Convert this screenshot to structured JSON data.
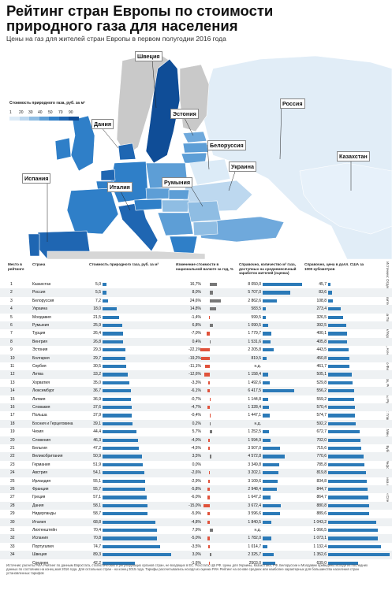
{
  "title": "Рейтинг стран Европы по стоимости природного газа для населения",
  "subtitle": "Цены на газ для жителей стран Европы в первом полугодии 2016 года",
  "legend": {
    "title": "Стоимость природного газа, руб. за м³",
    "ticks": [
      "1",
      "20",
      "30",
      "40",
      "50",
      "70",
      "90"
    ],
    "colors": [
      "#dcebf7",
      "#bdd8ef",
      "#8fbde3",
      "#5d9ed6",
      "#2f7fc8",
      "#1f66b2",
      "#0f4d97"
    ]
  },
  "map_labels": [
    "Швеция",
    "Дания",
    "Эстония",
    "Белоруссия",
    "Россия",
    "Украина",
    "Казахстан",
    "Румыния",
    "Италия",
    "Испания"
  ],
  "credit": "Источник: Отдел Правительства Польши/Украины, Агентство Финансов, Ресурсы Руслан: Главное; Миндлин Бубнов, Инфографика Антон Сперков",
  "headers": {
    "rank": "Место в рейтинге",
    "country": "Страна",
    "price": "Стоимость природного газа, руб. за м³",
    "change": "Изменение стоимости в национальной валюте за год, %",
    "volume": "Справочно, количество м³ газа, доступных на среднемесячный заработок жителей (оценка)",
    "usd": "Справочно, цена в долл. США за 1000 кубометров"
  },
  "chart_data": {
    "type": "table",
    "rows": [
      {
        "rank": "1",
        "country": "Казахстан",
        "price": "5,0",
        "change": "16,7%",
        "volume": "8 050,0",
        "usd": "45,7"
      },
      {
        "rank": "2",
        "country": "Россия",
        "price": "5,5",
        "change": "8,0%",
        "volume": "5 707,0",
        "usd": "83,6"
      },
      {
        "rank": "3",
        "country": "Белоруссия",
        "price": "7,2",
        "change": "24,6%",
        "volume": "2 862,6",
        "usd": "108,8"
      },
      {
        "rank": "4",
        "country": "Украина",
        "price": "18,0",
        "change": "14,8%",
        "volume": "583,5",
        "usd": "273,4"
      },
      {
        "rank": "5",
        "country": "Молдавия",
        "price": "21,5",
        "change": "-1,4%",
        "volume": "599,5",
        "usd": "326,5"
      },
      {
        "rank": "6",
        "country": "Румыния",
        "price": "25,9",
        "change": "6,8%",
        "volume": "1 090,5",
        "usd": "392,5"
      },
      {
        "rank": "7",
        "country": "Турция",
        "price": "26,4",
        "change": "-7,0%",
        "volume": "1 779,7",
        "usd": "400,1"
      },
      {
        "rank": "8",
        "country": "Венгрия",
        "price": "26,8",
        "change": "0,4%",
        "volume": "1 531,6",
        "usd": "405,8"
      },
      {
        "rank": "9",
        "country": "Эстония",
        "price": "29,3",
        "change": "-22,1%",
        "volume": "2 205,8",
        "usd": "443,5"
      },
      {
        "rank": "10",
        "country": "Болгария",
        "price": "29,7",
        "change": "-19,2%",
        "volume": "819,5",
        "usd": "450,8"
      },
      {
        "rank": "11",
        "country": "Сербия",
        "price": "30,5",
        "change": "-11,1%",
        "volume": "н.д.",
        "usd": "461,7"
      },
      {
        "rank": "12",
        "country": "Литва",
        "price": "33,2",
        "change": "-12,6%",
        "volume": "1 158,4",
        "usd": "505,1"
      },
      {
        "rank": "13",
        "country": "Хорватия",
        "price": "35,0",
        "change": "-3,3%",
        "volume": "1 492,6",
        "usd": "529,8"
      },
      {
        "rank": "14",
        "country": "Люксембург",
        "price": "36,7",
        "change": "-6,1%",
        "volume": "6 417,5",
        "usd": "556,2"
      },
      {
        "rank": "15",
        "country": "Латвия",
        "price": "36,9",
        "change": "-0,7%",
        "volume": "1 144,8",
        "usd": "559,2"
      },
      {
        "rank": "16",
        "country": "Словакия",
        "price": "37,6",
        "change": "-4,7%",
        "volume": "1 328,4",
        "usd": "570,4"
      },
      {
        "rank": "17",
        "country": "Польша",
        "price": "37,9",
        "change": "-0,4%",
        "volume": "1 447,1",
        "usd": "574,7"
      },
      {
        "rank": "18",
        "country": "Босния и Герцеговина",
        "price": "39,1",
        "change": "0,2%",
        "volume": "н.д.",
        "usd": "592,2"
      },
      {
        "rank": "19",
        "country": "Чехия",
        "price": "44,4",
        "change": "5,7%",
        "volume": "1 252,5",
        "usd": "672,7"
      },
      {
        "rank": "20",
        "country": "Словения",
        "price": "46,3",
        "change": "-4,0%",
        "volume": "1 594,9",
        "usd": "702,0"
      },
      {
        "rank": "21",
        "country": "Бельгия",
        "price": "47,2",
        "change": "-4,5%",
        "volume": "3 507,0",
        "usd": "715,6"
      },
      {
        "rank": "22",
        "country": "Великобритания",
        "price": "50,9",
        "change": "3,5%",
        "volume": "4 572,8",
        "usd": "770,6"
      },
      {
        "rank": "23",
        "country": "Германия",
        "price": "51,9",
        "change": "0,0%",
        "volume": "3 349,8",
        "usd": "785,8"
      },
      {
        "rank": "24",
        "country": "Австрия",
        "price": "54,1",
        "change": "-2,6%",
        "volume": "3 202,1",
        "usd": "819,8"
      },
      {
        "rank": "25",
        "country": "Ирландия",
        "price": "55,1",
        "change": "-2,9%",
        "volume": "3 109,6",
        "usd": "834,8"
      },
      {
        "rank": "26",
        "country": "Франция",
        "price": "55,7",
        "change": "-5,8%",
        "volume": "2 948,4",
        "usd": "844,7"
      },
      {
        "rank": "27",
        "country": "Греция",
        "price": "57,1",
        "change": "-6,0%",
        "volume": "1 647,2",
        "usd": "864,7"
      },
      {
        "rank": "28",
        "country": "Дания",
        "price": "58,1",
        "change": "-15,0%",
        "volume": "3 672,4",
        "usd": "880,8"
      },
      {
        "rank": "29",
        "country": "Нидерланды",
        "price": "58,7",
        "change": "-5,9%",
        "volume": "3 596,6",
        "usd": "889,6"
      },
      {
        "rank": "30",
        "country": "Италия",
        "price": "68,8",
        "change": "-4,8%",
        "volume": "1 840,5",
        "usd": "1 043,2"
      },
      {
        "rank": "31",
        "country": "Лихтенштейн",
        "price": "70,4",
        "change": "7,9%",
        "volume": "н.д.",
        "usd": "1 066,5"
      },
      {
        "rank": "32",
        "country": "Испания",
        "price": "70,8",
        "change": "-5,0%",
        "volume": "1 782,0",
        "usd": "1 073,1"
      },
      {
        "rank": "33",
        "country": "Португалия",
        "price": "74,7",
        "change": "-3,5%",
        "volume": "1 014,7",
        "usd": "1 132,4"
      },
      {
        "rank": "34",
        "country": "Швеция",
        "price": "89,3",
        "change": "3,0%",
        "volume": "2 325,7",
        "usd": "1 352,6"
      },
      {
        "rank": "",
        "country": "Среднее",
        "price": "42,2",
        "change": "-1,6%",
        "volume": "2503,0",
        "usd": "639,0"
      }
    ]
  },
  "footer": "Источник: расчеты РИА Рейтинг по данным Евростата, статистических и регулирующих органов стран, не входящих в ЕС. Росстата, ЦБ РФ. Цены для Украины, Казахстана, РФ, Белоруссии и Молдавии приведены исходя из последних данных по состоянию на конец мая 2016 года. Для остальных стран - на конец 2015 года. Тарифы рассчитывались исходя из оценки РИА Рейтинг на основе средних или наиболее характерных для большинства населения стран установленных тарифов"
}
